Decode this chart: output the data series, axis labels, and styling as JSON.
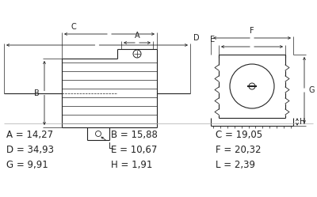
{
  "background_color": "#ffffff",
  "dim_rows": [
    [
      [
        "A",
        "14,27"
      ],
      [
        "B",
        "15,88"
      ],
      [
        "C",
        "19,05"
      ]
    ],
    [
      [
        "D",
        "34,93"
      ],
      [
        "E",
        "10,67"
      ],
      [
        "F",
        "20,32"
      ]
    ],
    [
      [
        "G",
        "9,91"
      ],
      [
        "H",
        "1,91"
      ],
      [
        "L",
        "2,39"
      ]
    ]
  ],
  "line_color": "#222222",
  "text_color": "#222222",
  "dim_fontsize": 8.5,
  "lw": 0.8,
  "alw": 0.6
}
